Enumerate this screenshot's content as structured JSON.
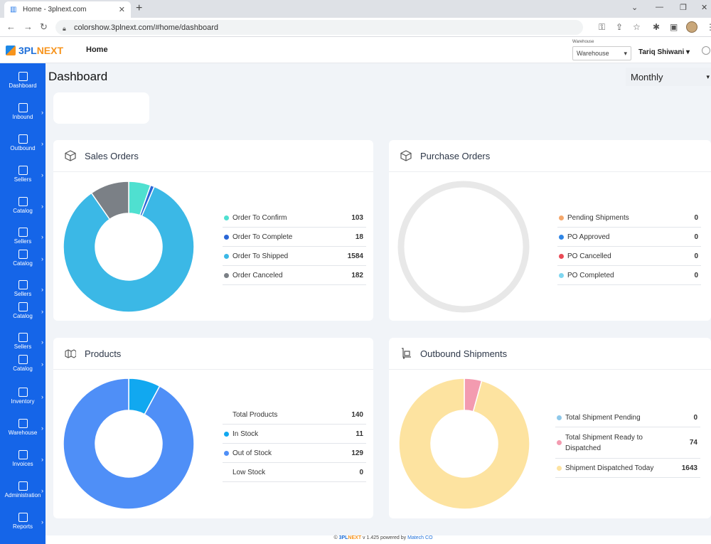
{
  "browser": {
    "tab_title": "Home - 3plnext.com",
    "url": "colorshow.3plnext.com/#home/dashboard"
  },
  "header": {
    "logo_text_1": "3PL",
    "logo_text_2": "NEXT",
    "home_label": "Home",
    "warehouse_label": "Warehouse",
    "warehouse_value": "Warehouse",
    "user_name": "Tariq Shiwani"
  },
  "sidebar": {
    "items": [
      {
        "label": "Dashboard"
      },
      {
        "label": "Inbound"
      },
      {
        "label": "Outbound"
      },
      {
        "label": "Sellers"
      },
      {
        "label": "Catalog"
      },
      {
        "label": "Sellers"
      },
      {
        "label": "Catalog"
      },
      {
        "label": "Sellers"
      },
      {
        "label": "Catalog"
      },
      {
        "label": "Sellers"
      },
      {
        "label": "Catalog"
      },
      {
        "label": "Inventory"
      },
      {
        "label": "Warehouse"
      },
      {
        "label": "Invoices"
      },
      {
        "label": "Administration"
      },
      {
        "label": "Reports"
      }
    ]
  },
  "main": {
    "title": "Dashboard",
    "period": "Monthly"
  },
  "cards": {
    "sales": {
      "title": "Sales Orders",
      "rows": [
        {
          "label": "Order To Confirm",
          "value": "103",
          "color": "#4fe0d0"
        },
        {
          "label": "Order To Complete",
          "value": "18",
          "color": "#2a66d6"
        },
        {
          "label": "Order To Shipped",
          "value": "1584",
          "color": "#3bb8e6"
        },
        {
          "label": "Order Canceled",
          "value": "182",
          "color": "#7b8086"
        }
      ]
    },
    "purchase": {
      "title": "Purchase Orders",
      "rows": [
        {
          "label": "Pending Shipments",
          "value": "0",
          "color": "#f5a76b"
        },
        {
          "label": "PO Approved",
          "value": "0",
          "color": "#2f86e6"
        },
        {
          "label": "PO Cancelled",
          "value": "0",
          "color": "#ea4a55"
        },
        {
          "label": "PO Completed",
          "value": "0",
          "color": "#7fd6f0"
        }
      ]
    },
    "products": {
      "title": "Products",
      "rows": [
        {
          "label": "Total Products",
          "value": "140",
          "color": ""
        },
        {
          "label": "In Stock",
          "value": "11",
          "color": "#11a8f0"
        },
        {
          "label": "Out of Stock",
          "value": "129",
          "color": "#4f8ff7"
        },
        {
          "label": "Low Stock",
          "value": "0",
          "color": ""
        }
      ]
    },
    "outbound": {
      "title": "Outbound Shipments",
      "rows": [
        {
          "label": "Total Shipment Pending",
          "value": "0",
          "color": "#8ec8ea"
        },
        {
          "label": "Total Shipment Ready to Dispatched",
          "value": "74",
          "color": "#f39bb0"
        },
        {
          "label": "Shipment Dispatched Today",
          "value": "1643",
          "color": "#fde3a0"
        }
      ]
    }
  },
  "chart_data": [
    {
      "type": "pie",
      "categories": [
        "Order To Confirm",
        "Order To Complete",
        "Order To Shipped",
        "Order Canceled"
      ],
      "values": [
        103,
        18,
        1584,
        182
      ],
      "colors": [
        "#4fe0d0",
        "#2a66d6",
        "#3bb8e6",
        "#7b8086"
      ]
    },
    {
      "type": "pie",
      "categories": [
        "Pending Shipments",
        "PO Approved",
        "PO Cancelled",
        "PO Completed"
      ],
      "values": [
        0,
        0,
        0,
        0
      ],
      "colors": [
        "#f5a76b",
        "#2f86e6",
        "#ea4a55",
        "#7fd6f0"
      ]
    },
    {
      "type": "pie",
      "categories": [
        "In Stock",
        "Out of Stock"
      ],
      "values": [
        11,
        129
      ],
      "colors": [
        "#11a8f0",
        "#4f8ff7"
      ]
    },
    {
      "type": "pie",
      "categories": [
        "Total Shipment Pending",
        "Total Shipment Ready to Dispatched",
        "Shipment Dispatched Today"
      ],
      "values": [
        0,
        74,
        1643
      ],
      "colors": [
        "#8ec8ea",
        "#f39bb0",
        "#fde3a0"
      ]
    }
  ],
  "footer": {
    "brand_1": "3PL",
    "brand_2": "NEXT",
    "version_text": "v 1.425 powered by",
    "company": "Matech CO"
  }
}
